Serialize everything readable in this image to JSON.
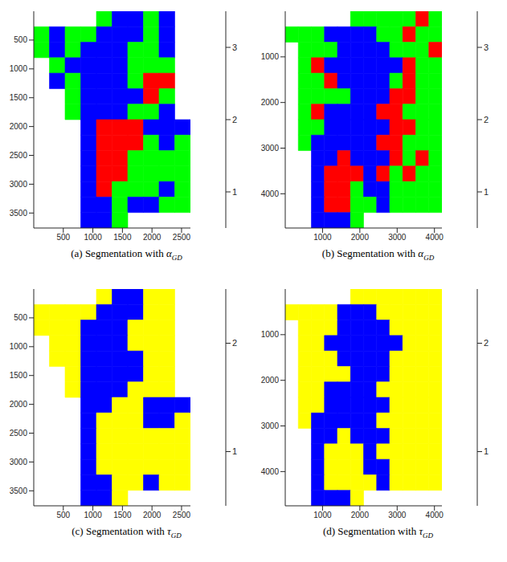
{
  "chart_data": [
    {
      "type": "heatmap",
      "label": "(a)",
      "title": "Segmentation with",
      "symbol": "α",
      "subscript": "GD",
      "xlim": [
        0,
        2650
      ],
      "ylim": [
        0,
        3760
      ],
      "xticks": [
        500,
        1000,
        1500,
        2000,
        2500
      ],
      "yticks": [
        500,
        1000,
        1500,
        2000,
        2500,
        3000,
        3500
      ],
      "cells": [
        [
          null,
          null,
          null,
          null,
          2,
          1,
          1,
          2,
          1,
          null
        ],
        [
          2,
          1,
          2,
          2,
          1,
          1,
          1,
          2,
          1,
          null
        ],
        [
          2,
          1,
          2,
          1,
          1,
          1,
          2,
          2,
          1,
          null
        ],
        [
          null,
          2,
          1,
          1,
          1,
          1,
          2,
          2,
          2,
          null
        ],
        [
          null,
          1,
          2,
          1,
          1,
          1,
          2,
          3,
          3,
          null
        ],
        [
          null,
          null,
          2,
          1,
          1,
          1,
          1,
          3,
          2,
          null
        ],
        [
          null,
          null,
          2,
          1,
          1,
          1,
          2,
          2,
          1,
          null
        ],
        [
          null,
          null,
          null,
          1,
          3,
          3,
          3,
          1,
          1,
          1
        ],
        [
          null,
          null,
          null,
          1,
          3,
          3,
          3,
          2,
          1,
          2
        ],
        [
          null,
          null,
          null,
          1,
          3,
          3,
          2,
          2,
          2,
          2
        ],
        [
          null,
          null,
          null,
          1,
          3,
          3,
          2,
          2,
          2,
          2
        ],
        [
          null,
          null,
          null,
          1,
          3,
          2,
          2,
          2,
          1,
          2
        ],
        [
          null,
          null,
          null,
          1,
          1,
          2,
          1,
          1,
          2,
          2
        ],
        [
          null,
          null,
          null,
          1,
          1,
          2,
          null,
          null,
          null,
          null
        ]
      ],
      "colorbar": {
        "range": [
          0.5,
          3.5
        ],
        "ticks": [
          1,
          2,
          3
        ],
        "colors": [
          "#0000ff",
          "#00ff00",
          "#ff0000"
        ]
      }
    },
    {
      "type": "heatmap",
      "label": "(b)",
      "title": "Segmentation with",
      "symbol": "α",
      "subscript": "GD",
      "xlim": [
        0,
        4200
      ],
      "ylim": [
        0,
        4750
      ],
      "xticks": [
        1000,
        2000,
        3000,
        4000
      ],
      "yticks": [
        1000,
        2000,
        3000,
        4000
      ],
      "cells": [
        [
          null,
          null,
          null,
          null,
          null,
          2,
          2,
          2,
          2,
          2,
          3,
          2
        ],
        [
          2,
          2,
          2,
          1,
          1,
          1,
          1,
          2,
          2,
          3,
          2,
          2
        ],
        [
          null,
          2,
          2,
          2,
          1,
          1,
          1,
          1,
          2,
          2,
          2,
          3
        ],
        [
          null,
          2,
          3,
          1,
          1,
          1,
          1,
          1,
          1,
          3,
          2,
          2
        ],
        [
          null,
          2,
          2,
          3,
          1,
          1,
          1,
          1,
          2,
          3,
          2,
          2
        ],
        [
          null,
          2,
          2,
          2,
          2,
          1,
          1,
          1,
          3,
          3,
          2,
          2
        ],
        [
          null,
          2,
          3,
          1,
          1,
          1,
          1,
          3,
          3,
          2,
          2,
          2
        ],
        [
          null,
          2,
          2,
          1,
          1,
          1,
          1,
          1,
          3,
          3,
          2,
          2
        ],
        [
          null,
          2,
          1,
          1,
          1,
          1,
          1,
          3,
          3,
          2,
          2,
          2
        ],
        [
          null,
          null,
          1,
          1,
          3,
          1,
          1,
          1,
          3,
          2,
          3,
          2
        ],
        [
          null,
          null,
          1,
          3,
          3,
          3,
          1,
          3,
          2,
          3,
          2,
          2
        ],
        [
          null,
          null,
          1,
          3,
          3,
          2,
          1,
          1,
          2,
          2,
          2,
          2
        ],
        [
          null,
          null,
          1,
          3,
          3,
          2,
          2,
          1,
          2,
          2,
          2,
          2
        ],
        [
          null,
          null,
          1,
          1,
          1,
          2,
          null,
          null,
          null,
          null,
          null,
          null
        ]
      ],
      "colorbar": {
        "range": [
          0.5,
          3.5
        ],
        "ticks": [
          1,
          2,
          3
        ],
        "colors": [
          "#0000ff",
          "#00ff00",
          "#ff0000"
        ]
      }
    },
    {
      "type": "heatmap",
      "label": "(c)",
      "title": "Segmentation with",
      "symbol": "τ",
      "subscript": "GD",
      "xlim": [
        0,
        2650
      ],
      "ylim": [
        0,
        3760
      ],
      "xticks": [
        500,
        1000,
        1500,
        2000,
        2500
      ],
      "yticks": [
        500,
        1000,
        1500,
        2000,
        2500,
        3000,
        3500
      ],
      "cells": [
        [
          null,
          null,
          null,
          null,
          2,
          1,
          1,
          2,
          2,
          null
        ],
        [
          2,
          2,
          2,
          2,
          1,
          1,
          1,
          2,
          2,
          null
        ],
        [
          2,
          2,
          2,
          1,
          1,
          1,
          2,
          2,
          2,
          null
        ],
        [
          null,
          2,
          2,
          1,
          1,
          1,
          2,
          2,
          2,
          null
        ],
        [
          null,
          2,
          2,
          1,
          1,
          1,
          1,
          2,
          2,
          null
        ],
        [
          null,
          null,
          2,
          1,
          1,
          1,
          1,
          2,
          2,
          null
        ],
        [
          null,
          null,
          2,
          1,
          1,
          1,
          2,
          2,
          2,
          null
        ],
        [
          null,
          null,
          null,
          1,
          1,
          2,
          2,
          1,
          1,
          1
        ],
        [
          null,
          null,
          null,
          1,
          2,
          2,
          2,
          1,
          1,
          2
        ],
        [
          null,
          null,
          null,
          1,
          2,
          2,
          2,
          2,
          2,
          2
        ],
        [
          null,
          null,
          null,
          1,
          2,
          2,
          2,
          2,
          2,
          2
        ],
        [
          null,
          null,
          null,
          1,
          2,
          2,
          2,
          2,
          2,
          2
        ],
        [
          null,
          null,
          null,
          1,
          1,
          2,
          2,
          1,
          2,
          2
        ],
        [
          null,
          null,
          null,
          1,
          1,
          2,
          null,
          null,
          null,
          null
        ]
      ],
      "colorbar": {
        "range": [
          0.5,
          2.5
        ],
        "ticks": [
          1,
          2
        ],
        "colors": [
          "#0000ff",
          "#ffff00"
        ]
      }
    },
    {
      "type": "heatmap",
      "label": "(d)",
      "title": "Segmentation with",
      "symbol": "τ",
      "subscript": "GD",
      "xlim": [
        0,
        4200
      ],
      "ylim": [
        0,
        4750
      ],
      "xticks": [
        1000,
        2000,
        3000,
        4000
      ],
      "yticks": [
        1000,
        2000,
        3000,
        4000
      ],
      "cells": [
        [
          null,
          null,
          null,
          null,
          null,
          2,
          2,
          2,
          2,
          2,
          2,
          2
        ],
        [
          2,
          2,
          2,
          2,
          1,
          1,
          1,
          2,
          2,
          2,
          2,
          2
        ],
        [
          null,
          2,
          2,
          2,
          1,
          1,
          1,
          1,
          2,
          2,
          2,
          2
        ],
        [
          null,
          2,
          2,
          1,
          1,
          1,
          1,
          1,
          1,
          2,
          2,
          2
        ],
        [
          null,
          2,
          2,
          2,
          1,
          1,
          1,
          1,
          2,
          2,
          2,
          2
        ],
        [
          null,
          2,
          2,
          2,
          2,
          1,
          1,
          1,
          2,
          2,
          2,
          2
        ],
        [
          null,
          2,
          2,
          1,
          1,
          1,
          1,
          2,
          2,
          2,
          2,
          2
        ],
        [
          null,
          2,
          2,
          1,
          1,
          1,
          1,
          1,
          2,
          2,
          2,
          2
        ],
        [
          null,
          2,
          1,
          1,
          1,
          1,
          1,
          2,
          2,
          2,
          2,
          2
        ],
        [
          null,
          null,
          1,
          1,
          2,
          1,
          1,
          1,
          2,
          2,
          2,
          2
        ],
        [
          null,
          null,
          1,
          2,
          2,
          2,
          1,
          2,
          2,
          2,
          2,
          2
        ],
        [
          null,
          null,
          1,
          2,
          2,
          2,
          1,
          1,
          2,
          2,
          2,
          2
        ],
        [
          null,
          null,
          1,
          2,
          2,
          2,
          2,
          1,
          2,
          2,
          2,
          2
        ],
        [
          null,
          null,
          1,
          1,
          1,
          2,
          null,
          null,
          null,
          null,
          null,
          null
        ]
      ],
      "colorbar": {
        "range": [
          0.5,
          2.5
        ],
        "ticks": [
          1,
          2
        ],
        "colors": [
          "#0000ff",
          "#ffff00"
        ]
      }
    }
  ]
}
